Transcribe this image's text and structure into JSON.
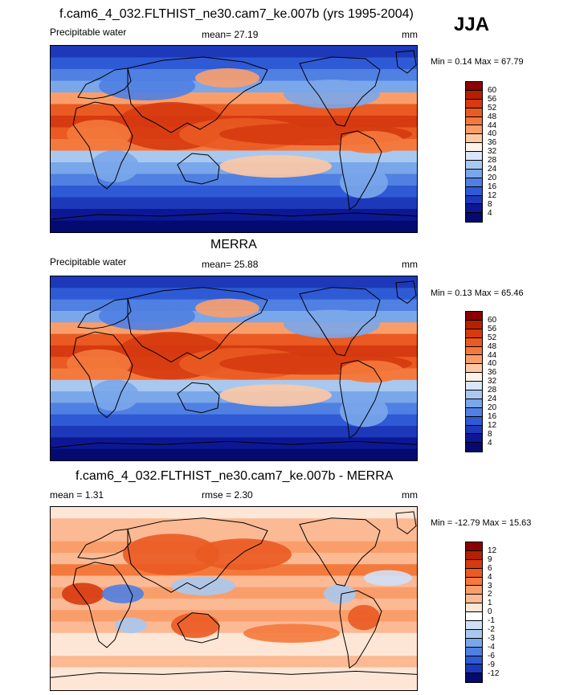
{
  "season": "JJA",
  "panels": [
    {
      "title": "f.cam6_4_032.FLTHIST_ne30.cam7_ke.007b (yrs 1995-2004)",
      "left_label": "Precipitable water",
      "center_label": "mean=  27.19",
      "units": "mm",
      "minmax": "Min =   0.14 Max =  67.79",
      "colorbar_labels": [
        "60",
        "56",
        "52",
        "48",
        "44",
        "40",
        "36",
        "32",
        "28",
        "24",
        "20",
        "16",
        "12",
        "8",
        "4"
      ],
      "colorbar_colors": [
        "#8b0000",
        "#b52000",
        "#d63a10",
        "#ea5a22",
        "#f4793c",
        "#f99e6b",
        "#fdc9a4",
        "#fff2e8",
        "#d7e6f8",
        "#a9c8f0",
        "#7aa6ea",
        "#4f80e2",
        "#2e5ad6",
        "#1d38b8",
        "#0c1893",
        "#040a70"
      ]
    },
    {
      "title": "MERRA",
      "left_label": "Precipitable water",
      "center_label": "mean=  25.88",
      "units": "mm",
      "minmax": "Min =   0.13 Max =  65.46",
      "colorbar_labels": [
        "60",
        "56",
        "52",
        "48",
        "44",
        "40",
        "36",
        "32",
        "28",
        "24",
        "20",
        "16",
        "12",
        "8",
        "4"
      ],
      "colorbar_colors": [
        "#8b0000",
        "#b52000",
        "#d63a10",
        "#ea5a22",
        "#f4793c",
        "#f99e6b",
        "#fdc9a4",
        "#fff2e8",
        "#d7e6f8",
        "#a9c8f0",
        "#7aa6ea",
        "#4f80e2",
        "#2e5ad6",
        "#1d38b8",
        "#0c1893",
        "#040a70"
      ]
    },
    {
      "title": "f.cam6_4_032.FLTHIST_ne30.cam7_ke.007b - MERRA",
      "left_label": "mean =   1.31",
      "center_label": "rmse =   2.30",
      "units": "mm",
      "minmax": "Min = -12.79 Max =  15.63",
      "colorbar_labels": [
        "12",
        "9",
        "6",
        "4",
        "3",
        "2",
        "1",
        "0",
        "-1",
        "-2",
        "-3",
        "-4",
        "-6",
        "-9",
        "-12"
      ],
      "colorbar_colors": [
        "#8b0000",
        "#b52000",
        "#d63a10",
        "#ea5a22",
        "#f4793c",
        "#f99e6b",
        "#fbb994",
        "#fde6d6",
        "#ffffff",
        "#cfe0f6",
        "#a9c8f0",
        "#7aa6ea",
        "#4f80e2",
        "#2e5ad6",
        "#1d38b8",
        "#040a70"
      ]
    }
  ]
}
